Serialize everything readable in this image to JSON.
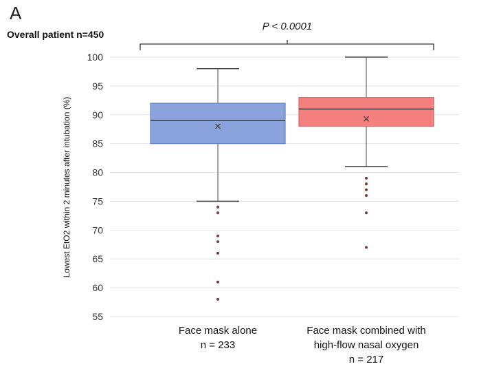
{
  "panel_label": "A",
  "subtitle": "Overall patient n=450",
  "significance": "P < 0.0001",
  "chart_data": {
    "type": "box",
    "title": "",
    "ylabel": "Lowest EtO2 within 2 minutes after intubation (%)",
    "xlabel": "",
    "ylim": [
      55,
      100
    ],
    "yticks": [
      55,
      60,
      65,
      70,
      75,
      80,
      85,
      90,
      95,
      100
    ],
    "grid": true,
    "legend": "none",
    "groups": [
      {
        "label_lines": [
          "Face mask alone",
          "n = 233"
        ],
        "color": "#8aa3dc",
        "stroke": "#6b86c4",
        "min": 75,
        "q1": 85,
        "median": 89,
        "q3": 92,
        "max": 98,
        "mean": 88,
        "outliers": [
          74,
          73,
          69,
          68,
          66,
          61,
          58
        ]
      },
      {
        "label_lines": [
          "Face mask combined with",
          "high-flow nasal oxygen",
          "n = 217"
        ],
        "color": "#f47f7f",
        "stroke": "#d96a6a",
        "min": 81,
        "q1": 88,
        "median": 91,
        "q3": 93,
        "max": 100,
        "mean": 89.3,
        "outliers": [
          79,
          78,
          77,
          76,
          73,
          67
        ]
      }
    ]
  }
}
